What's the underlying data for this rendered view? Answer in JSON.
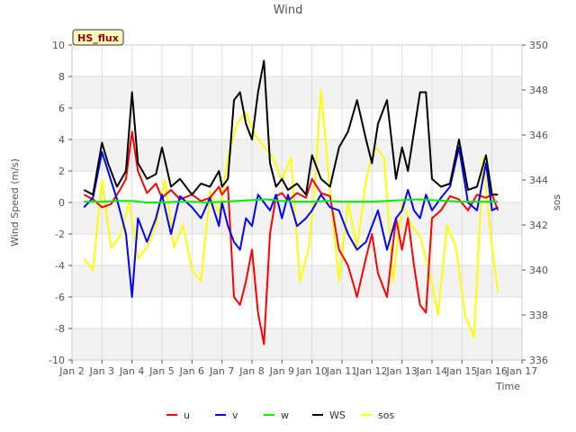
{
  "chart_data": {
    "type": "line",
    "title": "Wind",
    "xlabel": "Time",
    "ylabel": "Wind Speed (m/s)",
    "y2label": "sos",
    "annotation": "HS_flux",
    "xlim": [
      2,
      17
    ],
    "ylim": [
      -10,
      10
    ],
    "y2lim": [
      336,
      350
    ],
    "x_ticks": [
      2,
      3,
      4,
      5,
      6,
      7,
      8,
      9,
      10,
      11,
      12,
      13,
      14,
      15,
      16,
      17
    ],
    "x_tick_labels": [
      "Jan 2",
      "Jan 3",
      "Jan 4",
      "Jan 5",
      "Jan 6",
      "Jan 7",
      "Jan 8",
      "Jan 9",
      "Jan 10",
      "Jan 11",
      "Jan 12",
      "Jan 13",
      "Jan 14",
      "Jan 15",
      "Jan 16",
      "Jan 17"
    ],
    "y_ticks": [
      -10,
      -8,
      -6,
      -4,
      -2,
      0,
      2,
      4,
      6,
      8,
      10
    ],
    "y_tick_labels": [
      "-10",
      "-8",
      "-6",
      "-4",
      "-2",
      "0",
      "2",
      "4",
      "6",
      "8",
      "10"
    ],
    "y2_ticks": [
      336,
      338,
      340,
      342,
      344,
      346,
      348,
      350
    ],
    "y2_tick_labels": [
      "336",
      "338",
      "340",
      "342",
      "344",
      "346",
      "348",
      "350"
    ],
    "legend_position": "bottom-center",
    "series": [
      {
        "name": "u",
        "color": "#ff0000",
        "axis": "left",
        "x": [
          2.4,
          2.7,
          3.0,
          3.3,
          3.6,
          3.8,
          4.0,
          4.2,
          4.5,
          4.8,
          5.0,
          5.3,
          5.6,
          6.0,
          6.3,
          6.6,
          6.9,
          7.0,
          7.2,
          7.4,
          7.6,
          7.8,
          8.0,
          8.2,
          8.4,
          8.6,
          8.8,
          9.0,
          9.2,
          9.5,
          9.8,
          10.0,
          10.3,
          10.6,
          10.9,
          11.2,
          11.5,
          11.8,
          12.0,
          12.2,
          12.5,
          12.8,
          13.0,
          13.2,
          13.4,
          13.6,
          13.8,
          14.0,
          14.3,
          14.6,
          14.9,
          15.2,
          15.5,
          15.8,
          16.0,
          16.2
        ],
        "values": [
          0.5,
          0.2,
          -0.3,
          -0.1,
          0.8,
          1.5,
          4.5,
          2.0,
          0.6,
          1.2,
          0.3,
          0.8,
          0.2,
          0.5,
          0.1,
          0.3,
          1.0,
          0.5,
          1.0,
          -6.0,
          -6.5,
          -5.0,
          -3.0,
          -7.0,
          -9.0,
          -2.0,
          0.4,
          0.6,
          0.1,
          0.6,
          0.3,
          1.5,
          0.6,
          0.4,
          -3.0,
          -4.0,
          -6.0,
          -3.5,
          -2.0,
          -4.5,
          -6.0,
          -1.0,
          -3.0,
          -1.0,
          -4.0,
          -6.5,
          -7.0,
          -1.0,
          -0.5,
          0.4,
          0.2,
          -0.5,
          0.5,
          0.3,
          0.5,
          -0.5
        ]
      },
      {
        "name": "v",
        "color": "#0000ff",
        "axis": "left",
        "x": [
          2.4,
          2.7,
          3.0,
          3.2,
          3.5,
          3.8,
          4.0,
          4.2,
          4.5,
          4.8,
          5.0,
          5.3,
          5.6,
          6.0,
          6.3,
          6.6,
          6.9,
          7.0,
          7.2,
          7.4,
          7.6,
          7.8,
          8.0,
          8.2,
          8.4,
          8.6,
          8.8,
          9.0,
          9.2,
          9.5,
          9.8,
          10.0,
          10.3,
          10.6,
          10.9,
          11.2,
          11.5,
          11.8,
          12.0,
          12.2,
          12.5,
          12.8,
          13.0,
          13.2,
          13.4,
          13.6,
          13.8,
          14.0,
          14.3,
          14.6,
          14.9,
          15.2,
          15.5,
          15.8,
          16.0,
          16.2
        ],
        "values": [
          -0.3,
          0.3,
          3.2,
          2.0,
          0.2,
          -2.0,
          -6.0,
          -1.0,
          -2.5,
          -1.0,
          0.5,
          -2.0,
          0.4,
          -0.3,
          -1.0,
          0.3,
          -1.5,
          0.0,
          -1.5,
          -2.5,
          -3.0,
          -1.0,
          -1.5,
          0.5,
          0.0,
          -0.5,
          0.5,
          -1.0,
          0.5,
          -1.5,
          -1.0,
          -0.5,
          0.5,
          -0.3,
          -0.5,
          -2.0,
          -3.0,
          -2.5,
          -1.5,
          -0.5,
          -3.0,
          -1.0,
          -0.5,
          0.8,
          -0.5,
          -1.0,
          0.5,
          -0.5,
          0.3,
          1.0,
          3.5,
          0.0,
          -0.5,
          2.5,
          -0.5,
          -0.3
        ]
      },
      {
        "name": "w",
        "color": "#00ee00",
        "axis": "left",
        "x": [
          2.4,
          3.0,
          3.5,
          4.0,
          4.5,
          5.0,
          5.5,
          6.0,
          6.5,
          7.0,
          7.5,
          8.0,
          8.5,
          9.0,
          9.5,
          10.0,
          10.5,
          11.0,
          11.5,
          12.0,
          12.5,
          13.0,
          13.5,
          14.0,
          14.5,
          15.0,
          15.5,
          16.0,
          16.2
        ],
        "values": [
          0.05,
          0.05,
          0.1,
          0.1,
          0.0,
          0.0,
          0.05,
          0.05,
          0.0,
          0.05,
          0.1,
          0.15,
          0.2,
          0.1,
          0.05,
          0.05,
          0.1,
          0.05,
          0.05,
          0.05,
          0.1,
          0.15,
          0.2,
          0.15,
          0.1,
          0.05,
          0.05,
          0.05,
          0.05
        ]
      },
      {
        "name": "WS",
        "color": "#000000",
        "axis": "left",
        "x": [
          2.4,
          2.7,
          3.0,
          3.2,
          3.5,
          3.8,
          4.0,
          4.2,
          4.5,
          4.8,
          5.0,
          5.3,
          5.6,
          6.0,
          6.3,
          6.6,
          6.9,
          7.0,
          7.2,
          7.4,
          7.6,
          7.8,
          8.0,
          8.2,
          8.4,
          8.6,
          8.8,
          9.0,
          9.2,
          9.5,
          9.8,
          10.0,
          10.3,
          10.6,
          10.9,
          11.2,
          11.5,
          11.8,
          12.0,
          12.2,
          12.5,
          12.8,
          13.0,
          13.2,
          13.4,
          13.6,
          13.8,
          14.0,
          14.3,
          14.6,
          14.9,
          15.2,
          15.5,
          15.8,
          16.0,
          16.2
        ],
        "values": [
          0.8,
          0.5,
          3.8,
          2.5,
          1.0,
          2.0,
          7.0,
          2.5,
          1.5,
          1.8,
          3.5,
          1.0,
          1.5,
          0.5,
          1.2,
          1.0,
          2.0,
          1.0,
          1.5,
          6.5,
          7.0,
          5.0,
          4.0,
          7.0,
          9.0,
          2.5,
          1.0,
          1.5,
          0.8,
          1.2,
          0.5,
          3.0,
          1.5,
          1.0,
          3.5,
          4.5,
          6.5,
          4.0,
          2.5,
          5.0,
          6.5,
          1.5,
          3.5,
          2.0,
          4.5,
          7.0,
          7.0,
          1.5,
          1.0,
          1.2,
          4.0,
          0.8,
          1.0,
          3.0,
          0.5,
          0.5
        ]
      },
      {
        "name": "sos",
        "color": "#ffff00",
        "axis": "right",
        "x": [
          2.4,
          2.7,
          3.0,
          3.3,
          3.6,
          3.9,
          4.2,
          4.5,
          4.8,
          5.1,
          5.4,
          5.7,
          6.0,
          6.3,
          6.6,
          6.9,
          7.2,
          7.5,
          7.8,
          8.1,
          8.4,
          8.7,
          9.0,
          9.3,
          9.6,
          9.9,
          10.1,
          10.3,
          10.6,
          10.9,
          11.2,
          11.5,
          11.8,
          12.1,
          12.4,
          12.7,
          13.0,
          13.3,
          13.6,
          13.9,
          14.2,
          14.5,
          14.8,
          15.1,
          15.4,
          15.7,
          16.0,
          16.2
        ],
        "values": [
          340.5,
          340.0,
          344.0,
          341.0,
          341.5,
          343.0,
          340.5,
          341.0,
          342.0,
          344.0,
          341.0,
          342.0,
          340.0,
          339.5,
          343.5,
          342.5,
          345.0,
          346.5,
          347.0,
          346.0,
          345.5,
          345.0,
          344.0,
          345.0,
          339.5,
          341.0,
          344.0,
          348.0,
          343.5,
          339.5,
          343.0,
          341.0,
          344.0,
          345.5,
          345.0,
          339.5,
          343.0,
          342.0,
          341.5,
          340.0,
          338.0,
          342.0,
          341.0,
          338.0,
          337.0,
          345.0,
          341.0,
          339.0
        ]
      }
    ]
  }
}
